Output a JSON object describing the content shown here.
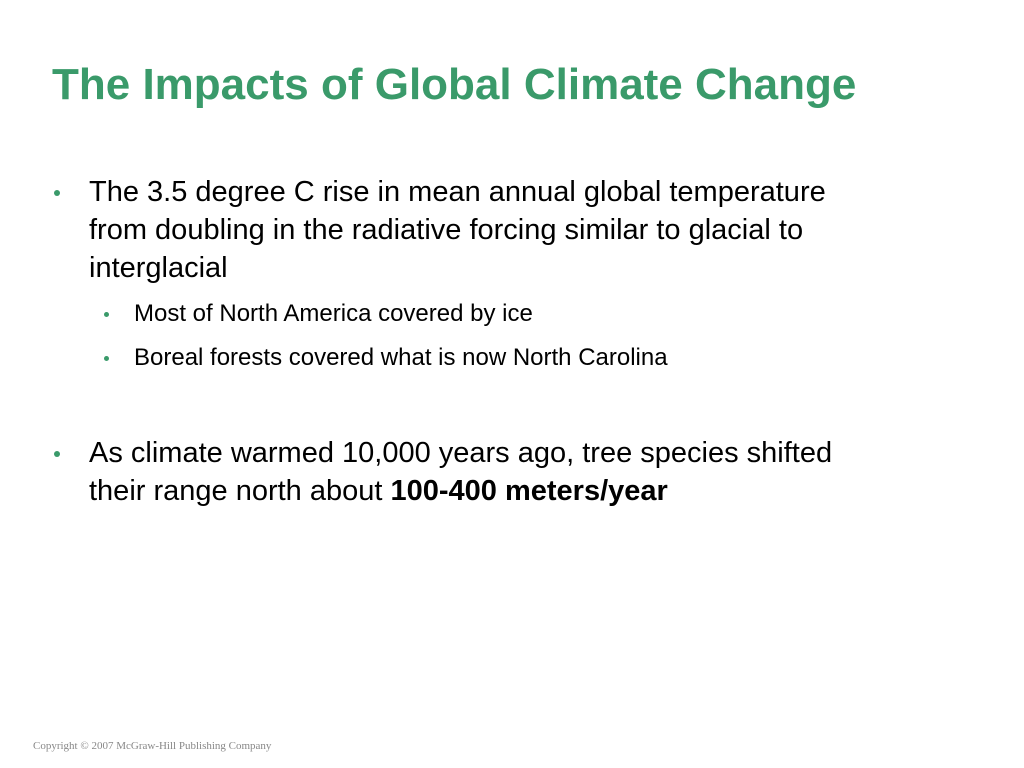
{
  "title": "The Impacts of Global Climate Change",
  "bullets": [
    {
      "text": "The 3.5 degree C rise in mean annual global temperature from doubling in the radiative forcing similar to glacial to interglacial",
      "sub_bullets": [
        "Most of North America covered by ice",
        "Boreal forests covered what is now North Carolina"
      ]
    },
    {
      "text": "As climate warmed 10,000 years ago, tree species shifted their range north about",
      "bold": "100-400 meters/year"
    }
  ],
  "footer": "Copyright © 2007 McGraw-Hill Publishing Company"
}
